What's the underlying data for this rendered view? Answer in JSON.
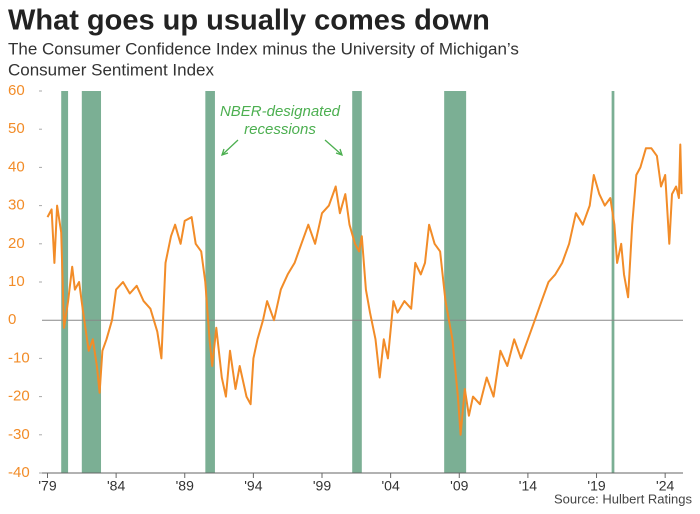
{
  "chart_data": {
    "type": "line",
    "title": "What goes up usually comes down",
    "subtitle": [
      "The Consumer Confidence Index minus the University of Michigan’s",
      "Consumer Sentiment Index"
    ],
    "annotation": [
      "NBER-designated",
      "recessions"
    ],
    "source": "Source: Hulbert Ratings",
    "xlim": [
      1978.6,
      2025.3
    ],
    "ylim": [
      -40,
      60
    ],
    "yticks": [
      -40,
      -30,
      -20,
      -10,
      0,
      10,
      20,
      30,
      40,
      50,
      60
    ],
    "xticks": [
      {
        "value": 1979,
        "label": "'79"
      },
      {
        "value": 1984,
        "label": "'84"
      },
      {
        "value": 1989,
        "label": "'89"
      },
      {
        "value": 1994,
        "label": "'94"
      },
      {
        "value": 1999,
        "label": "'99"
      },
      {
        "value": 2004,
        "label": "'04"
      },
      {
        "value": 2009,
        "label": "'09"
      },
      {
        "value": 2014,
        "label": "'14"
      },
      {
        "value": 2019,
        "label": "'19"
      },
      {
        "value": 2024,
        "label": "'24"
      }
    ],
    "recessions": [
      [
        1980.0,
        1980.5
      ],
      [
        1981.5,
        1982.9
      ],
      [
        1990.5,
        1991.2
      ],
      [
        2001.2,
        2001.9
      ],
      [
        2007.9,
        2009.5
      ],
      [
        2020.1,
        2020.3
      ]
    ],
    "recession_color": "#4f9470",
    "series": [
      {
        "color": "#f28c28",
        "x": [
          1979.0,
          1979.3,
          1979.5,
          1979.7,
          1980.0,
          1980.2,
          1980.5,
          1980.8,
          1981.0,
          1981.3,
          1981.6,
          1982.0,
          1982.3,
          1982.6,
          1982.8,
          1983.0,
          1983.3,
          1983.7,
          1984.0,
          1984.5,
          1985.0,
          1985.5,
          1986.0,
          1986.5,
          1987.0,
          1987.3,
          1987.6,
          1988.0,
          1988.3,
          1988.7,
          1989.0,
          1989.5,
          1989.8,
          1990.2,
          1990.5,
          1990.8,
          1991.0,
          1991.3,
          1991.7,
          1992.0,
          1992.3,
          1992.7,
          1993.0,
          1993.5,
          1993.8,
          1994.0,
          1994.3,
          1994.7,
          1995.0,
          1995.5,
          1996.0,
          1996.5,
          1997.0,
          1997.5,
          1998.0,
          1998.5,
          1999.0,
          1999.5,
          2000.0,
          2000.3,
          2000.7,
          2001.0,
          2001.4,
          2001.7,
          2001.9,
          2002.2,
          2002.5,
          2002.9,
          2003.2,
          2003.5,
          2003.8,
          2004.2,
          2004.5,
          2005.0,
          2005.5,
          2005.8,
          2006.2,
          2006.5,
          2006.8,
          2007.2,
          2007.6,
          2008.0,
          2008.5,
          2008.9,
          2009.1,
          2009.4,
          2009.7,
          2010.0,
          2010.5,
          2011.0,
          2011.5,
          2012.0,
          2012.5,
          2013.0,
          2013.5,
          2014.0,
          2014.5,
          2015.0,
          2015.5,
          2016.0,
          2016.5,
          2017.0,
          2017.5,
          2018.0,
          2018.5,
          2018.8,
          2019.2,
          2019.6,
          2020.0,
          2020.3,
          2020.5,
          2020.8,
          2021.0,
          2021.3,
          2021.6,
          2021.9,
          2022.2,
          2022.6,
          2023.0,
          2023.4,
          2023.7,
          2024.0,
          2024.3,
          2024.5,
          2024.8,
          2025.0,
          2025.1,
          2025.2
        ],
        "values": [
          27,
          29,
          15,
          30,
          23,
          -2,
          5,
          14,
          8,
          10,
          2,
          -8,
          -5,
          -12,
          -19,
          -8,
          -5,
          0,
          8,
          10,
          7,
          9,
          5,
          3,
          -3,
          -10,
          15,
          22,
          25,
          20,
          26,
          27,
          20,
          18,
          10,
          -5,
          -12,
          -2,
          -15,
          -20,
          -8,
          -18,
          -12,
          -20,
          -22,
          -10,
          -5,
          0,
          5,
          0,
          8,
          12,
          15,
          20,
          25,
          20,
          28,
          30,
          35,
          28,
          33,
          25,
          20,
          18,
          22,
          8,
          2,
          -5,
          -15,
          -5,
          -10,
          5,
          2,
          5,
          3,
          15,
          12,
          15,
          25,
          20,
          18,
          5,
          -5,
          -20,
          -30,
          -18,
          -25,
          -20,
          -22,
          -15,
          -20,
          -8,
          -12,
          -5,
          -10,
          -5,
          0,
          5,
          10,
          12,
          15,
          20,
          28,
          25,
          30,
          38,
          33,
          30,
          32,
          25,
          15,
          20,
          12,
          6,
          25,
          38,
          40,
          45,
          45,
          43,
          35,
          38,
          20,
          33,
          35,
          32,
          46,
          33
        ]
      }
    ]
  }
}
